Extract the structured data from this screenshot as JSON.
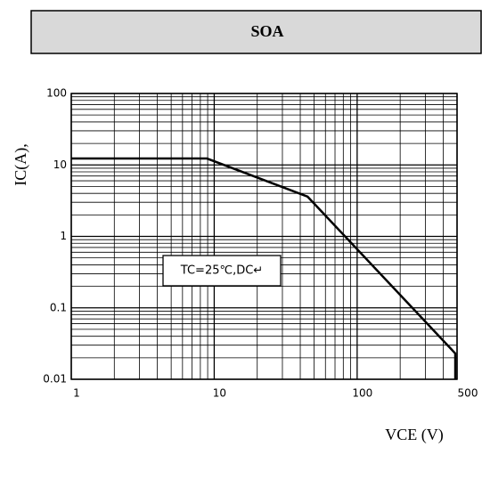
{
  "chart_data": {
    "type": "line",
    "title": "SOA",
    "x_label": "VCE (V)",
    "y_label": "IC(A),",
    "annotation": "TC=25℃,DC↵",
    "x": [
      1,
      8.9,
      45,
      486,
      486
    ],
    "values": [
      12.3,
      12.3,
      3.6,
      0.023,
      0.01
    ],
    "color": "#000000",
    "xlim": [
      1,
      500
    ],
    "xticks": [
      1,
      10,
      100,
      500
    ],
    "ylim": [
      0.01,
      100
    ],
    "yticks": [
      100,
      10,
      1,
      0.1,
      0.01
    ],
    "log": true,
    "grid": true
  }
}
